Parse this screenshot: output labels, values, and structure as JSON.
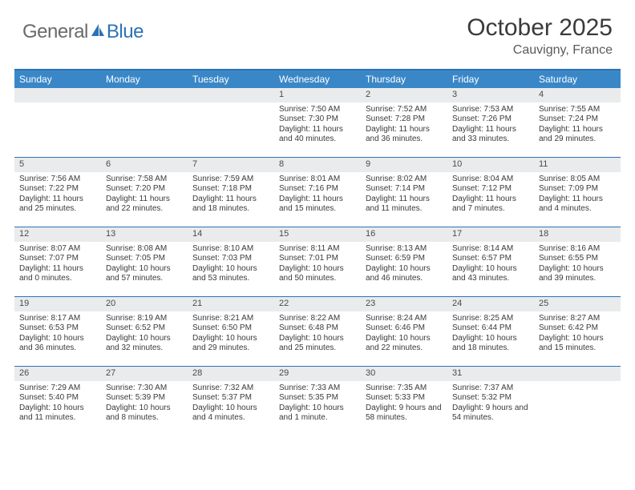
{
  "brand": {
    "general": "General",
    "blue": "Blue"
  },
  "colors": {
    "accent": "#2d72b5",
    "header_bg": "#3a87c7",
    "daynum_bg": "#e9ebec",
    "text_primary": "#3a3a3a",
    "text_muted": "#5a5a5a"
  },
  "title": "October 2025",
  "location": "Cauvigny, France",
  "day_labels": [
    "Sunday",
    "Monday",
    "Tuesday",
    "Wednesday",
    "Thursday",
    "Friday",
    "Saturday"
  ],
  "weeks": [
    [
      null,
      null,
      null,
      {
        "n": "1",
        "sr": "Sunrise: 7:50 AM",
        "ss": "Sunset: 7:30 PM",
        "dl": "Daylight: 11 hours and 40 minutes."
      },
      {
        "n": "2",
        "sr": "Sunrise: 7:52 AM",
        "ss": "Sunset: 7:28 PM",
        "dl": "Daylight: 11 hours and 36 minutes."
      },
      {
        "n": "3",
        "sr": "Sunrise: 7:53 AM",
        "ss": "Sunset: 7:26 PM",
        "dl": "Daylight: 11 hours and 33 minutes."
      },
      {
        "n": "4",
        "sr": "Sunrise: 7:55 AM",
        "ss": "Sunset: 7:24 PM",
        "dl": "Daylight: 11 hours and 29 minutes."
      }
    ],
    [
      {
        "n": "5",
        "sr": "Sunrise: 7:56 AM",
        "ss": "Sunset: 7:22 PM",
        "dl": "Daylight: 11 hours and 25 minutes."
      },
      {
        "n": "6",
        "sr": "Sunrise: 7:58 AM",
        "ss": "Sunset: 7:20 PM",
        "dl": "Daylight: 11 hours and 22 minutes."
      },
      {
        "n": "7",
        "sr": "Sunrise: 7:59 AM",
        "ss": "Sunset: 7:18 PM",
        "dl": "Daylight: 11 hours and 18 minutes."
      },
      {
        "n": "8",
        "sr": "Sunrise: 8:01 AM",
        "ss": "Sunset: 7:16 PM",
        "dl": "Daylight: 11 hours and 15 minutes."
      },
      {
        "n": "9",
        "sr": "Sunrise: 8:02 AM",
        "ss": "Sunset: 7:14 PM",
        "dl": "Daylight: 11 hours and 11 minutes."
      },
      {
        "n": "10",
        "sr": "Sunrise: 8:04 AM",
        "ss": "Sunset: 7:12 PM",
        "dl": "Daylight: 11 hours and 7 minutes."
      },
      {
        "n": "11",
        "sr": "Sunrise: 8:05 AM",
        "ss": "Sunset: 7:09 PM",
        "dl": "Daylight: 11 hours and 4 minutes."
      }
    ],
    [
      {
        "n": "12",
        "sr": "Sunrise: 8:07 AM",
        "ss": "Sunset: 7:07 PM",
        "dl": "Daylight: 11 hours and 0 minutes."
      },
      {
        "n": "13",
        "sr": "Sunrise: 8:08 AM",
        "ss": "Sunset: 7:05 PM",
        "dl": "Daylight: 10 hours and 57 minutes."
      },
      {
        "n": "14",
        "sr": "Sunrise: 8:10 AM",
        "ss": "Sunset: 7:03 PM",
        "dl": "Daylight: 10 hours and 53 minutes."
      },
      {
        "n": "15",
        "sr": "Sunrise: 8:11 AM",
        "ss": "Sunset: 7:01 PM",
        "dl": "Daylight: 10 hours and 50 minutes."
      },
      {
        "n": "16",
        "sr": "Sunrise: 8:13 AM",
        "ss": "Sunset: 6:59 PM",
        "dl": "Daylight: 10 hours and 46 minutes."
      },
      {
        "n": "17",
        "sr": "Sunrise: 8:14 AM",
        "ss": "Sunset: 6:57 PM",
        "dl": "Daylight: 10 hours and 43 minutes."
      },
      {
        "n": "18",
        "sr": "Sunrise: 8:16 AM",
        "ss": "Sunset: 6:55 PM",
        "dl": "Daylight: 10 hours and 39 minutes."
      }
    ],
    [
      {
        "n": "19",
        "sr": "Sunrise: 8:17 AM",
        "ss": "Sunset: 6:53 PM",
        "dl": "Daylight: 10 hours and 36 minutes."
      },
      {
        "n": "20",
        "sr": "Sunrise: 8:19 AM",
        "ss": "Sunset: 6:52 PM",
        "dl": "Daylight: 10 hours and 32 minutes."
      },
      {
        "n": "21",
        "sr": "Sunrise: 8:21 AM",
        "ss": "Sunset: 6:50 PM",
        "dl": "Daylight: 10 hours and 29 minutes."
      },
      {
        "n": "22",
        "sr": "Sunrise: 8:22 AM",
        "ss": "Sunset: 6:48 PM",
        "dl": "Daylight: 10 hours and 25 minutes."
      },
      {
        "n": "23",
        "sr": "Sunrise: 8:24 AM",
        "ss": "Sunset: 6:46 PM",
        "dl": "Daylight: 10 hours and 22 minutes."
      },
      {
        "n": "24",
        "sr": "Sunrise: 8:25 AM",
        "ss": "Sunset: 6:44 PM",
        "dl": "Daylight: 10 hours and 18 minutes."
      },
      {
        "n": "25",
        "sr": "Sunrise: 8:27 AM",
        "ss": "Sunset: 6:42 PM",
        "dl": "Daylight: 10 hours and 15 minutes."
      }
    ],
    [
      {
        "n": "26",
        "sr": "Sunrise: 7:29 AM",
        "ss": "Sunset: 5:40 PM",
        "dl": "Daylight: 10 hours and 11 minutes."
      },
      {
        "n": "27",
        "sr": "Sunrise: 7:30 AM",
        "ss": "Sunset: 5:39 PM",
        "dl": "Daylight: 10 hours and 8 minutes."
      },
      {
        "n": "28",
        "sr": "Sunrise: 7:32 AM",
        "ss": "Sunset: 5:37 PM",
        "dl": "Daylight: 10 hours and 4 minutes."
      },
      {
        "n": "29",
        "sr": "Sunrise: 7:33 AM",
        "ss": "Sunset: 5:35 PM",
        "dl": "Daylight: 10 hours and 1 minute."
      },
      {
        "n": "30",
        "sr": "Sunrise: 7:35 AM",
        "ss": "Sunset: 5:33 PM",
        "dl": "Daylight: 9 hours and 58 minutes."
      },
      {
        "n": "31",
        "sr": "Sunrise: 7:37 AM",
        "ss": "Sunset: 5:32 PM",
        "dl": "Daylight: 9 hours and 54 minutes."
      },
      null
    ]
  ]
}
